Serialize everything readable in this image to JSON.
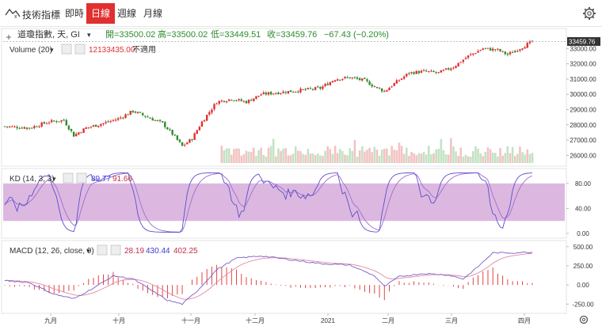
{
  "toolbar": {
    "indicator_label": "技術指標",
    "tabs": [
      {
        "label": "即時",
        "active": false
      },
      {
        "label": "日線",
        "active": true
      },
      {
        "label": "週線",
        "active": false
      },
      {
        "label": "月線",
        "active": false
      }
    ]
  },
  "legend": {
    "symbol": "道瓊指數, 天, GI",
    "open": "開=33500.02",
    "high": "高=33500.02",
    "low": "低=33449.51",
    "close": "收=33459.76",
    "change": "−67.43 (−0.20%)",
    "volume_label": "Volume (20)",
    "volume_value": "12133435.00",
    "volume_na": "不適用",
    "kd_label": "KD (14, 3, 3)",
    "kd_k": "89.77",
    "kd_d": "91.66",
    "macd_label": "MACD (12, 26, close, 9)",
    "macd_v1": "28.19",
    "macd_v2": "430.44",
    "macd_v3": "402.25"
  },
  "colors": {
    "up": "#e0302f",
    "down": "#2e8b2e",
    "vol_up": "#f3c3c3",
    "vol_down": "#c4e2c4",
    "kd_band": "#dcb8e0",
    "k_line": "#5b4fc9",
    "d_line": "#9a6fd0",
    "macd_line": "#7a5cc8",
    "signal_line": "#e08aa0",
    "hist": "#e0302f"
  },
  "chart_data": [
    {
      "type": "candlestick",
      "title": "道瓊指數, 天, GI",
      "last_price": "33459.76",
      "x_ticks": [
        "九月",
        "十月",
        "十一月",
        "十二月",
        "2021",
        "二月",
        "三月",
        "四月"
      ],
      "y_ticks": [
        "26000.00",
        "27000.00",
        "28000.00",
        "29000.00",
        "30000.00",
        "31000.00",
        "32000.00",
        "33000.00"
      ],
      "ylim": [
        25500,
        34000
      ],
      "close_anchors": [
        [
          0,
          27900
        ],
        [
          10,
          27800
        ],
        [
          18,
          28200
        ],
        [
          24,
          28300
        ],
        [
          28,
          27300
        ],
        [
          33,
          27800
        ],
        [
          40,
          28100
        ],
        [
          46,
          28400
        ],
        [
          52,
          28900
        ],
        [
          58,
          28500
        ],
        [
          64,
          28100
        ],
        [
          68,
          27400
        ],
        [
          72,
          26600
        ],
        [
          76,
          27100
        ],
        [
          80,
          28200
        ],
        [
          86,
          29500
        ],
        [
          92,
          29700
        ],
        [
          98,
          29500
        ],
        [
          104,
          30000
        ],
        [
          110,
          30100
        ],
        [
          116,
          30200
        ],
        [
          122,
          30300
        ],
        [
          128,
          30400
        ],
        [
          134,
          31000
        ],
        [
          140,
          31100
        ],
        [
          146,
          30900
        ],
        [
          150,
          30500
        ],
        [
          154,
          30200
        ],
        [
          158,
          30700
        ],
        [
          164,
          31400
        ],
        [
          170,
          31500
        ],
        [
          176,
          31400
        ],
        [
          182,
          31800
        ],
        [
          188,
          32500
        ],
        [
          194,
          33000
        ],
        [
          200,
          32900
        ],
        [
          204,
          32600
        ],
        [
          210,
          33100
        ],
        [
          214,
          33460
        ]
      ]
    },
    {
      "type": "bar",
      "title": "Volume (20)",
      "value": "12133435.00"
    },
    {
      "type": "line",
      "title": "KD (14, 3, 3)",
      "series": [
        {
          "name": "K",
          "last": 89.77
        },
        {
          "name": "D",
          "last": 91.66
        }
      ],
      "y_ticks": [
        "0.00",
        "40.00",
        "80.00"
      ],
      "band": [
        20,
        80
      ],
      "ylim": [
        -5,
        100
      ]
    },
    {
      "type": "line",
      "title": "MACD (12, 26, close, 9)",
      "series": [
        {
          "name": "MACD",
          "last": 430.44
        },
        {
          "name": "Signal",
          "last": 402.25
        },
        {
          "name": "Histogram",
          "last": 28.19
        }
      ],
      "y_ticks": [
        "-250.00",
        "0.00",
        "250.00",
        "500.00"
      ],
      "macd_anchors": [
        [
          0,
          60
        ],
        [
          10,
          30
        ],
        [
          20,
          -120
        ],
        [
          28,
          -180
        ],
        [
          36,
          -40
        ],
        [
          44,
          120
        ],
        [
          52,
          80
        ],
        [
          60,
          -80
        ],
        [
          66,
          -200
        ],
        [
          72,
          -250
        ],
        [
          78,
          -80
        ],
        [
          86,
          200
        ],
        [
          94,
          350
        ],
        [
          104,
          380
        ],
        [
          116,
          330
        ],
        [
          128,
          280
        ],
        [
          140,
          260
        ],
        [
          150,
          120
        ],
        [
          154,
          -20
        ],
        [
          160,
          110
        ],
        [
          170,
          150
        ],
        [
          180,
          130
        ],
        [
          186,
          80
        ],
        [
          192,
          240
        ],
        [
          198,
          420
        ],
        [
          206,
          420
        ],
        [
          214,
          430
        ]
      ],
      "ylim": [
        -350,
        560
      ]
    }
  ]
}
